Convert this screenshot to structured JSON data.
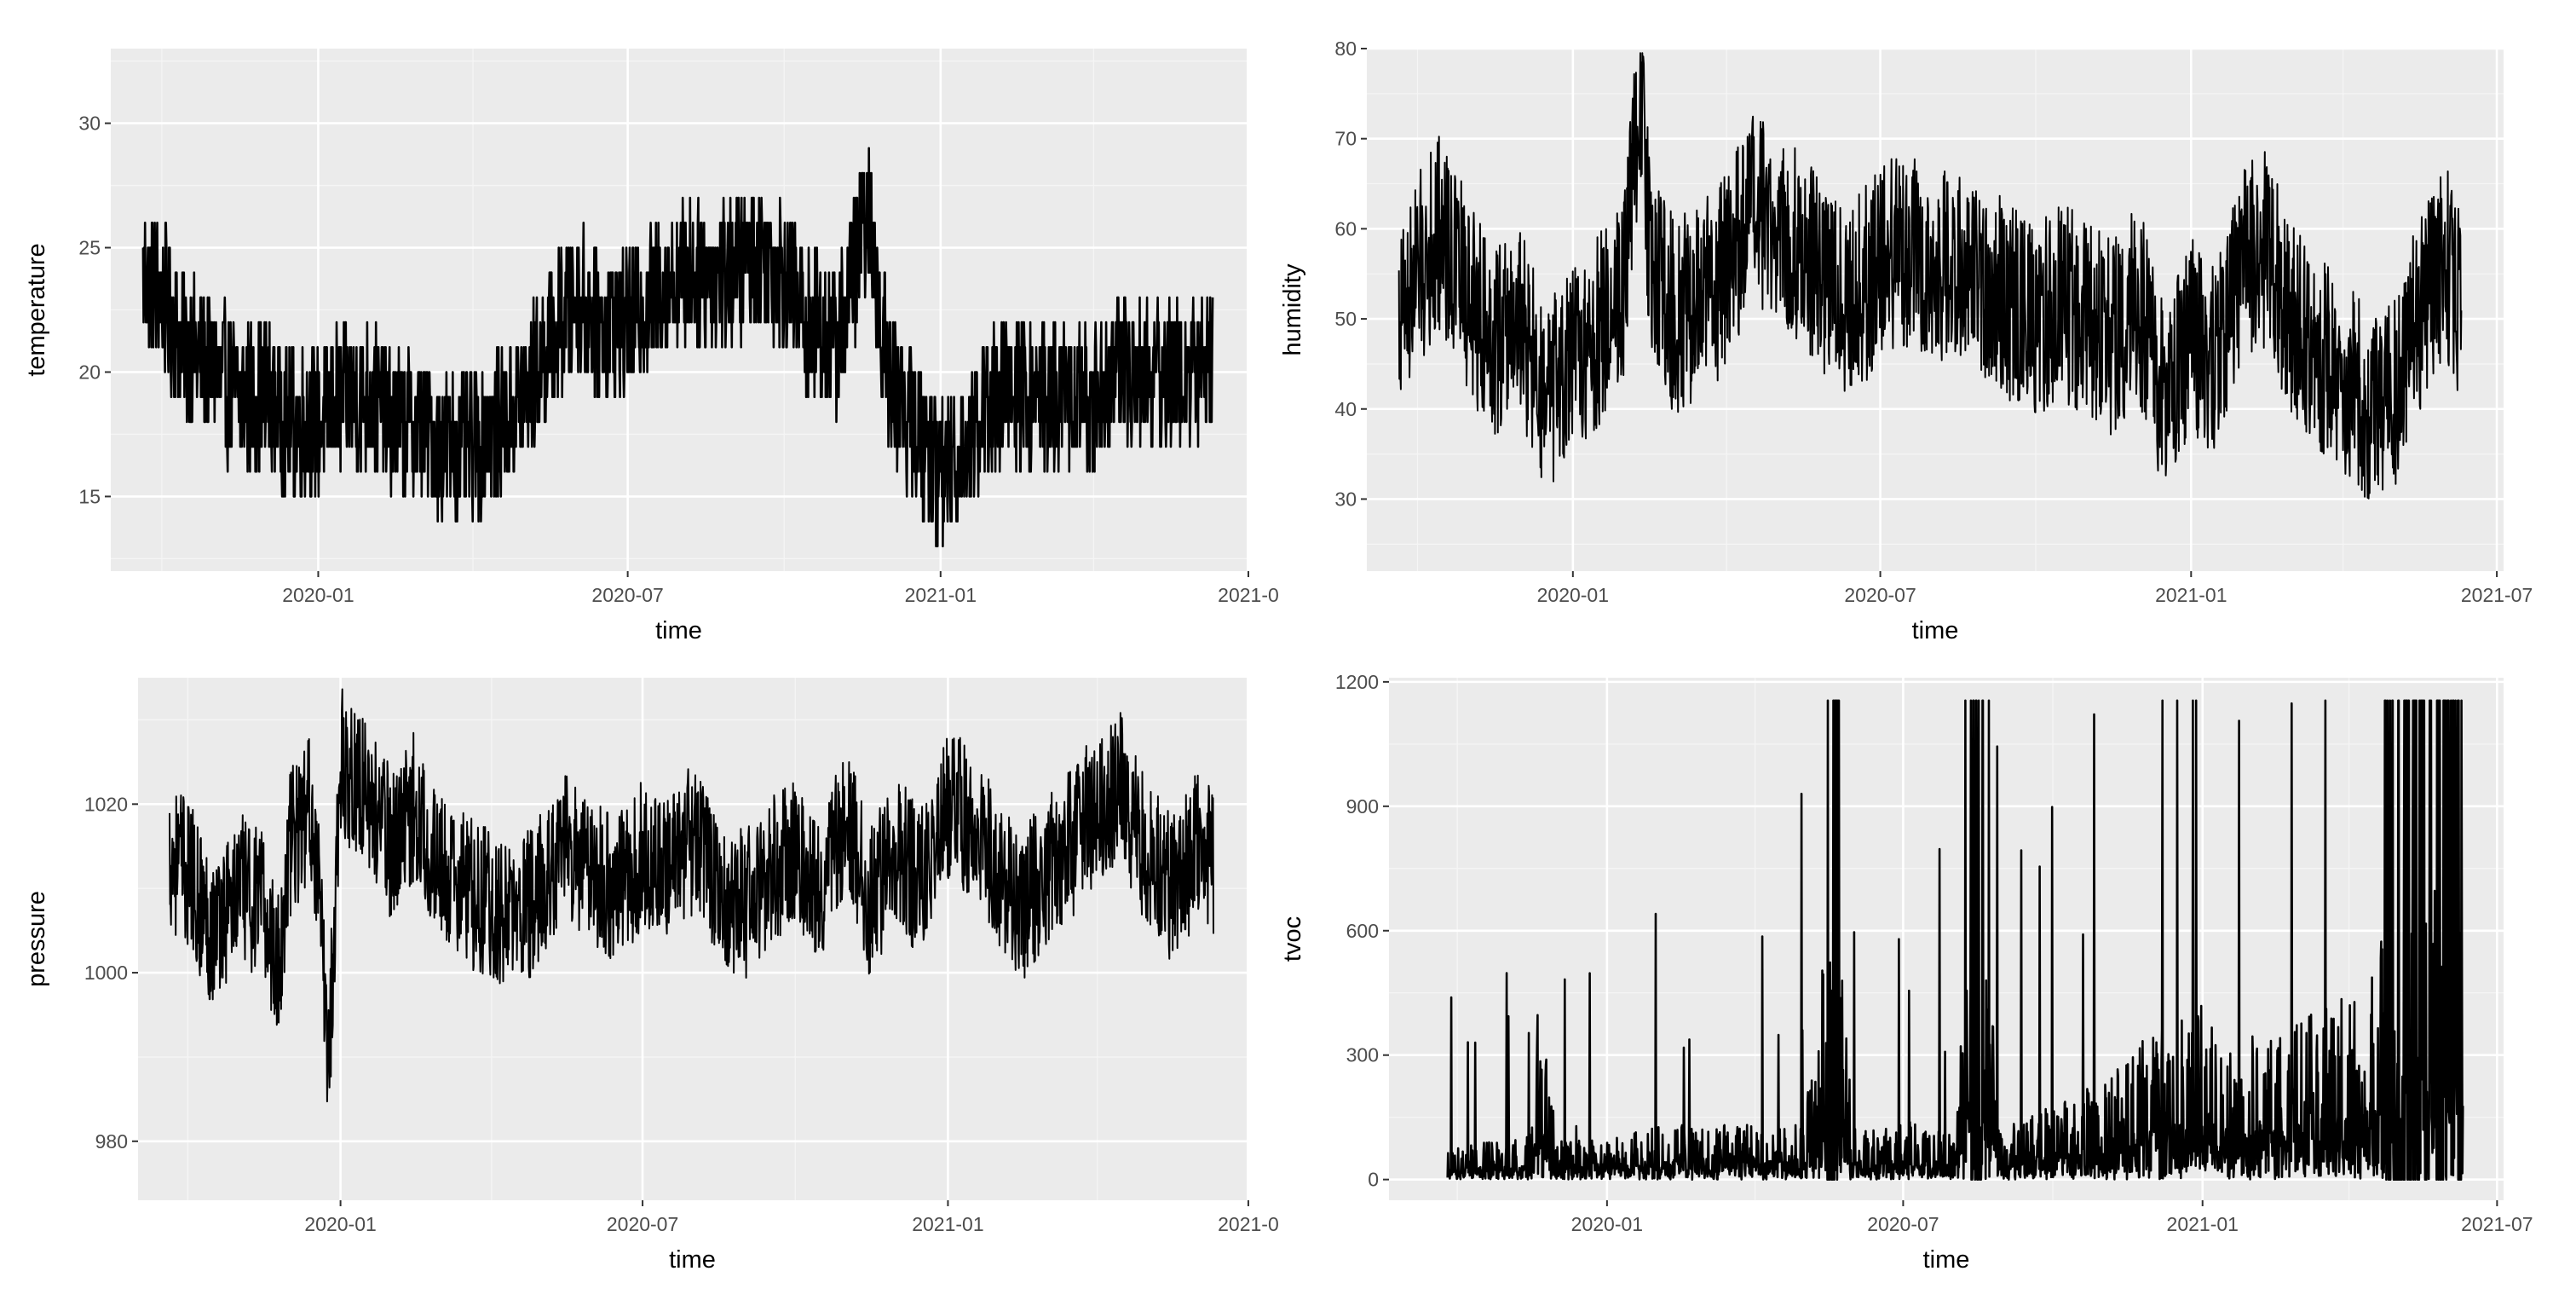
{
  "chart_data": [
    {
      "type": "line",
      "xlabel": "time",
      "ylabel": "temperature",
      "xlim": [
        "2019-09-01",
        "2021-06-30"
      ],
      "ylim": [
        12,
        33
      ],
      "yticks": [
        15,
        20,
        25,
        30
      ],
      "xticks": [
        "2020-01",
        "2020-07",
        "2021-01",
        "2021-07"
      ],
      "xtick_labels": [
        "2020-01",
        "2020-07",
        "2021-01",
        "2021-0"
      ],
      "grid": true,
      "background": "#ebebeb",
      "line_color": "#000000",
      "series": [
        {
          "x": [
            "2019-09-20",
            "2019-10-01",
            "2019-10-15",
            "2019-11-01",
            "2019-11-15",
            "2019-12-01",
            "2019-12-15",
            "2020-01-01",
            "2020-01-15",
            "2020-02-01",
            "2020-02-15",
            "2020-03-01",
            "2020-03-15",
            "2020-04-01",
            "2020-04-15",
            "2020-05-01",
            "2020-05-15",
            "2020-06-01",
            "2020-06-15",
            "2020-07-01",
            "2020-07-15",
            "2020-08-01",
            "2020-08-15",
            "2020-09-01",
            "2020-09-15",
            "2020-10-01",
            "2020-10-15",
            "2020-11-01",
            "2020-11-10",
            "2020-11-20",
            "2020-12-01",
            "2020-12-15",
            "2021-01-01",
            "2021-01-15",
            "2021-02-01",
            "2021-02-15",
            "2021-03-01",
            "2021-03-15",
            "2021-04-01",
            "2021-04-15",
            "2021-05-01",
            "2021-05-15",
            "2021-06-01",
            "2021-06-10"
          ],
          "y": [
            24,
            23,
            21,
            20,
            19,
            19,
            18,
            18,
            19,
            19,
            18,
            18,
            17,
            17,
            18,
            19,
            21,
            23,
            22,
            22,
            23,
            24,
            24,
            24,
            25,
            24,
            22,
            21,
            24,
            26,
            20,
            18,
            16,
            17,
            19,
            19,
            19,
            19,
            19,
            20,
            20,
            20,
            20,
            21
          ]
        }
      ]
    },
    {
      "type": "line",
      "xlabel": "time",
      "ylabel": "humidity",
      "xlim": [
        "2019-09-01",
        "2021-07-05"
      ],
      "ylim": [
        22,
        80
      ],
      "yticks": [
        30,
        40,
        50,
        60,
        70,
        80
      ],
      "xticks": [
        "2020-01",
        "2020-07",
        "2021-01",
        "2021-07"
      ],
      "xtick_labels": [
        "2020-01",
        "2020-07",
        "2021-01",
        "2021-07"
      ],
      "grid": true,
      "background": "#ebebeb",
      "line_color": "#000000",
      "series": [
        {
          "x": [
            "2019-09-20",
            "2019-10-01",
            "2019-10-15",
            "2019-11-01",
            "2019-11-15",
            "2019-12-01",
            "2019-12-15",
            "2020-01-01",
            "2020-01-15",
            "2020-02-01",
            "2020-02-10",
            "2020-02-15",
            "2020-03-01",
            "2020-03-15",
            "2020-04-01",
            "2020-04-15",
            "2020-05-01",
            "2020-05-15",
            "2020-06-01",
            "2020-06-15",
            "2020-07-01",
            "2020-07-15",
            "2020-08-01",
            "2020-08-15",
            "2020-09-01",
            "2020-09-15",
            "2020-10-01",
            "2020-10-15",
            "2020-11-01",
            "2020-11-15",
            "2020-12-01",
            "2020-12-15",
            "2021-01-01",
            "2021-01-15",
            "2021-02-01",
            "2021-02-15",
            "2021-03-01",
            "2021-03-15",
            "2021-04-01",
            "2021-04-15",
            "2021-05-01",
            "2021-05-15",
            "2021-06-01",
            "2021-06-10"
          ],
          "y": [
            50,
            55,
            60,
            52,
            48,
            50,
            40,
            45,
            48,
            55,
            77,
            58,
            50,
            52,
            55,
            62,
            60,
            58,
            54,
            52,
            56,
            58,
            55,
            56,
            54,
            52,
            50,
            52,
            50,
            48,
            52,
            42,
            48,
            45,
            56,
            58,
            50,
            46,
            44,
            40,
            42,
            50,
            56,
            52
          ]
        }
      ]
    },
    {
      "type": "line",
      "xlabel": "time",
      "ylabel": "pressure",
      "xlim": [
        "2019-09-01",
        "2021-06-30"
      ],
      "ylim": [
        973,
        1035
      ],
      "yticks": [
        980,
        1000,
        1020
      ],
      "xticks": [
        "2020-01",
        "2020-07",
        "2021-01",
        "2021-07"
      ],
      "xtick_labels": [
        "2020-01",
        "2020-07",
        "2021-01",
        "2021-0"
      ],
      "grid": true,
      "background": "#ebebeb",
      "line_color": "#000000",
      "series": [
        {
          "x": [
            "2019-09-20",
            "2019-10-01",
            "2019-10-15",
            "2019-11-01",
            "2019-11-15",
            "2019-11-25",
            "2019-12-01",
            "2019-12-15",
            "2019-12-25",
            "2020-01-01",
            "2020-01-15",
            "2020-02-01",
            "2020-02-15",
            "2020-03-01",
            "2020-03-15",
            "2020-04-01",
            "2020-04-15",
            "2020-05-01",
            "2020-05-15",
            "2020-06-01",
            "2020-06-15",
            "2020-07-01",
            "2020-07-15",
            "2020-08-01",
            "2020-08-15",
            "2020-09-01",
            "2020-09-15",
            "2020-10-01",
            "2020-10-15",
            "2020-11-01",
            "2020-11-15",
            "2020-12-01",
            "2020-12-15",
            "2021-01-01",
            "2021-01-15",
            "2021-02-01",
            "2021-02-15",
            "2021-03-01",
            "2021-03-15",
            "2021-04-01",
            "2021-04-15",
            "2021-05-01",
            "2021-05-15",
            "2021-06-01",
            "2021-06-10"
          ],
          "y": [
            1014,
            1012,
            1005,
            1010,
            1008,
            1000,
            1015,
            1020,
            990,
            1025,
            1022,
            1015,
            1020,
            1012,
            1010,
            1008,
            1006,
            1010,
            1015,
            1012,
            1010,
            1014,
            1012,
            1016,
            1010,
            1008,
            1012,
            1015,
            1010,
            1018,
            1008,
            1015,
            1010,
            1020,
            1018,
            1012,
            1008,
            1012,
            1015,
            1020,
            1022,
            1014,
            1010,
            1015,
            1013
          ]
        }
      ]
    },
    {
      "type": "line",
      "xlabel": "time",
      "ylabel": "tvoc",
      "xlim": [
        "2019-08-20",
        "2021-07-05"
      ],
      "ylim": [
        -50,
        1210
      ],
      "yticks": [
        0,
        300,
        600,
        900,
        1200
      ],
      "xticks": [
        "2020-01",
        "2020-07",
        "2021-01",
        "2021-07"
      ],
      "xtick_labels": [
        "2020-01",
        "2020-07",
        "2021-01",
        "2021-07"
      ],
      "grid": true,
      "background": "#ebebeb",
      "line_color": "#000000",
      "series": [
        {
          "x": [
            "2019-09-25",
            "2019-10-15",
            "2019-11-01",
            "2019-11-15",
            "2019-11-20",
            "2019-12-01",
            "2019-12-15",
            "2020-01-01",
            "2020-01-15",
            "2020-02-01",
            "2020-02-15",
            "2020-03-01",
            "2020-03-15",
            "2020-04-01",
            "2020-04-15",
            "2020-05-01",
            "2020-05-20",
            "2020-06-01",
            "2020-06-15",
            "2020-07-01",
            "2020-07-15",
            "2020-08-01",
            "2020-08-15",
            "2020-09-01",
            "2020-09-15",
            "2020-10-01",
            "2020-10-15",
            "2020-11-01",
            "2020-11-15",
            "2020-12-01",
            "2020-12-15",
            "2021-01-01",
            "2021-01-15",
            "2021-02-01",
            "2021-02-15",
            "2021-03-01",
            "2021-03-15",
            "2021-04-01",
            "2021-04-15",
            "2021-05-01",
            "2021-05-15",
            "2021-06-01",
            "2021-06-10"
          ],
          "y": [
            40,
            60,
            50,
            90,
            650,
            70,
            60,
            80,
            90,
            110,
            120,
            100,
            130,
            120,
            110,
            140,
            1150,
            120,
            100,
            140,
            110,
            130,
            1150,
            100,
            160,
            200,
            250,
            300,
            400,
            500,
            600,
            650,
            450,
            500,
            450,
            550,
            600,
            650,
            800,
            1000,
            1150,
            1150,
            1100
          ]
        }
      ]
    }
  ]
}
